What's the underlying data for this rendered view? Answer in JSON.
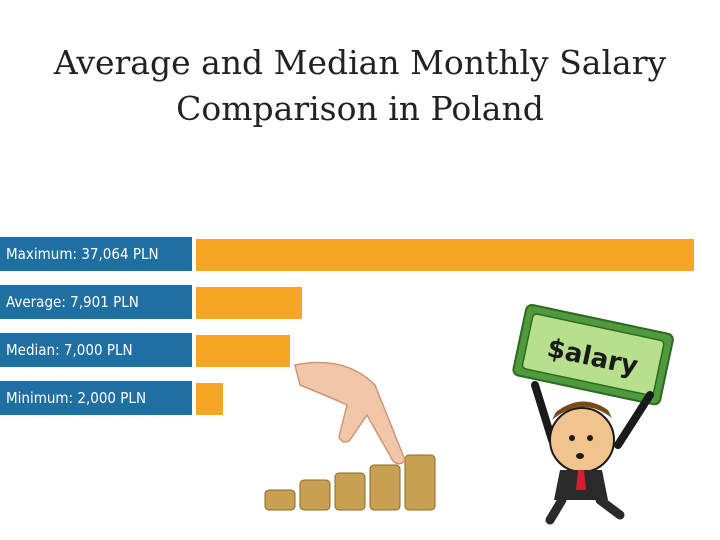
{
  "title_line1": "Average and Median Monthly Salary",
  "title_line2": "Comparison in Poland",
  "illustration": {
    "sign_text": "$alary"
  },
  "colors": {
    "label_bg": "#1f6fa3",
    "bar": "#f5a623",
    "label_text": "#ffffff"
  },
  "chart_data": {
    "type": "bar",
    "orientation": "horizontal",
    "title": "Average and Median Monthly Salary Comparison in Poland",
    "categories": [
      "Maximum: 37,064 PLN",
      "Average: 7,901 PLN",
      "Median: 7,000 PLN",
      "Minimum: 2,000 PLN"
    ],
    "values": [
      37064,
      7901,
      7000,
      2000
    ],
    "unit": "PLN",
    "xlim": [
      0,
      37064
    ],
    "grid": false,
    "legend": "none"
  }
}
